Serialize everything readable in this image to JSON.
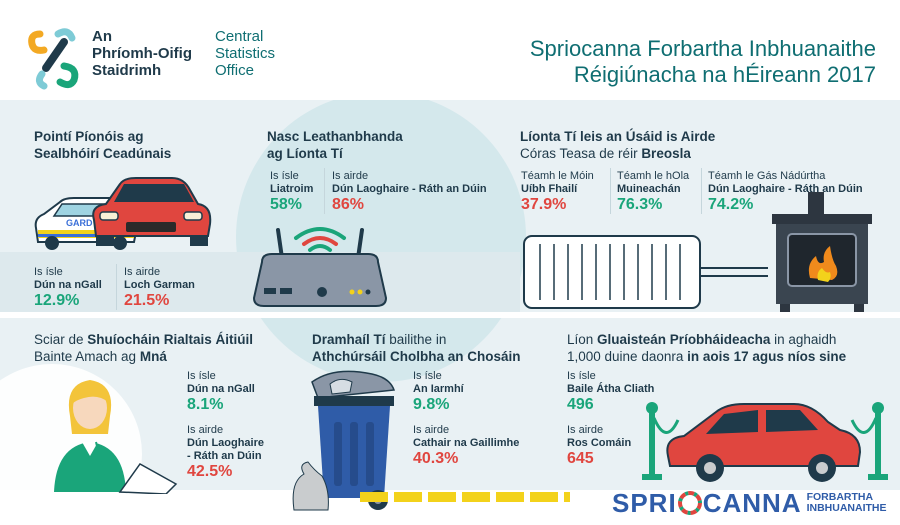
{
  "header": {
    "org_irish": [
      "An",
      "Phríomh-Oifig",
      "Staidrimh"
    ],
    "org_english": [
      "Central",
      "Statistics",
      "Office"
    ],
    "title_line1": "Spriocanna Forbartha Inbhuanaithe",
    "title_line2": "Réigiúnacha na hÉireann 2017"
  },
  "penalty": {
    "title_line1": "Pointí Píonóis ag",
    "title_line2": "Sealbhóirí Ceadúnais",
    "car_text": "GARD",
    "low_label": "Is ísle",
    "low_place": "Dún na nGall",
    "low_value": "12.9%",
    "high_label": "Is airde",
    "high_place": "Loch Garman",
    "high_value": "21.5%"
  },
  "broadband": {
    "title_line1": "Nasc Leathanbhanda",
    "title_line2": "ag Líonta Tí",
    "low_label": "Is ísle",
    "low_place": "Liatroim",
    "low_value": "58%",
    "high_label": "Is airde",
    "high_place": "Dún Laoghaire - Ráth an Dúin",
    "high_value": "86%"
  },
  "heating": {
    "title_line1": "Líonta Tí leis an Úsáid is Airde",
    "title_line2_pre": "Córas Teasa de réir ",
    "title_line2_bold": "Breosla",
    "items": [
      {
        "label": "Téamh le Móin",
        "place": "Uíbh Fhailí",
        "value": "37.9%"
      },
      {
        "label": "Téamh le hOla",
        "place": "Muineachán",
        "value": "76.3%"
      },
      {
        "label": "Téamh le Gás Nádúrtha",
        "place": "Dún Laoghaire - Ráth an Dúin",
        "value": "74.2%"
      }
    ]
  },
  "women": {
    "title_line1_pre": "Sciar de ",
    "title_line1_bold": "Shuíocháin Rialtais Áitiúil",
    "title_line2_pre": "Bainte Amach ag ",
    "title_line2_bold": "Mná",
    "low_label": "Is ísle",
    "low_place": "Dún na nGall",
    "low_value": "8.1%",
    "high_label": "Is airde",
    "high_place_line1": "Dún Laoghaire",
    "high_place_line2": "- Ráth an Dúin",
    "high_value": "42.5%"
  },
  "waste": {
    "title_line1_pre": "Dramhaíl Tí",
    "title_line1_rest": " bailithe in",
    "title_line2": "Athchúrsáil Cholbha an Chosáin",
    "low_label": "Is ísle",
    "low_place": "An Iarmhí",
    "low_value": "9.8%",
    "high_label": "Is airde",
    "high_place": "Cathair na Gaillimhe",
    "high_value": "40.3%"
  },
  "cars": {
    "title_line1_pre": "Líon ",
    "title_line1_bold": "Gluaisteán Príobháideacha",
    "title_line1_rest": " in aghaidh",
    "title_line2_pre": "1,000 duine daonra ",
    "title_line2_bold": "in aois 17 agus níos sine",
    "low_label": "Is ísle",
    "low_place": "Baile Átha Cliath",
    "low_value": "496",
    "high_label": "Is airde",
    "high_place": "Ros Comáin",
    "high_value": "645"
  },
  "footer": {
    "logo_pre": "SPRI",
    "logo_post": "CANNA",
    "logo_small1": "FORBARTHA",
    "logo_small2": "INBHUANAITHE"
  },
  "colors": {
    "teal": "#0f6e72",
    "green": "#1aa57a",
    "red": "#e0463f",
    "navy": "#1f3a4a",
    "bg_panel": "#e9f1f4",
    "bg_circle": "#d4e8ec"
  }
}
